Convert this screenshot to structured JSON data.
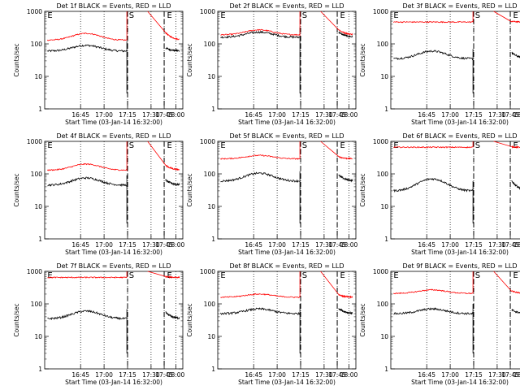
{
  "figure": {
    "background": "#ffffff",
    "axis_color": "#000000",
    "events_color": "#000000",
    "lld_color": "#ff0000"
  },
  "chart_data": [
    {
      "type": "line",
      "title": "Det 1f BLACK = Events, RED = LLD",
      "xlabel": "Start Time (03-Jan-14 16:32:00)",
      "ylabel": "Counts/sec",
      "yscale": "log",
      "ylim": [
        1,
        1000
      ],
      "ytick_labels": [
        "1",
        "10",
        "100",
        "1000"
      ],
      "xtick_labels": [
        "16:45",
        "17:00",
        "17:15",
        "17:30",
        "17:45",
        "18:00"
      ],
      "markers": [
        "E",
        "S",
        "E"
      ],
      "events": {
        "base": 60,
        "hump": 30,
        "after": 80
      },
      "lld": {
        "base": 130,
        "hump": 80,
        "after": 250,
        "off_scale_peak": true
      }
    },
    {
      "type": "line",
      "title": "Det 2f BLACK = Events, RED = LLD",
      "xlabel": "Start Time (03-Jan-14 16:32:00)",
      "ylabel": "Counts/sec",
      "yscale": "log",
      "ylim": [
        1,
        1000
      ],
      "ytick_labels": [
        "1",
        "10",
        "100",
        "1000"
      ],
      "xtick_labels": [
        "16:45",
        "17:00",
        "17:15",
        "17:30",
        "17:45",
        "18:00"
      ],
      "markers": [
        "E",
        "S",
        "E"
      ],
      "events": {
        "base": 160,
        "hump": 70,
        "after": 250
      },
      "lld": {
        "base": 190,
        "hump": 80,
        "after": 300,
        "off_scale_peak": true
      }
    },
    {
      "type": "line",
      "title": "Det 3f BLACK = Events, RED = LLD",
      "xlabel": "Start Time (03-Jan-14 16:32:00)",
      "ylabel": "Counts/sec",
      "yscale": "log",
      "ylim": [
        1,
        1000
      ],
      "ytick_labels": [
        "1",
        "10",
        "100",
        "1000"
      ],
      "xtick_labels": [
        "16:45",
        "17:00",
        "17:15",
        "17:30",
        "17:45",
        "18:00"
      ],
      "markers": [
        "E",
        "S",
        "E"
      ],
      "events": {
        "base": 35,
        "hump": 25,
        "after": 60
      },
      "lld": {
        "base": 470,
        "hump": 0,
        "after": 500,
        "off_scale_peak": true
      }
    },
    {
      "type": "line",
      "title": "Det 4f BLACK = Events, RED = LLD",
      "xlabel": "Start Time (03-Jan-14 16:32:00)",
      "ylabel": "Counts/sec",
      "yscale": "log",
      "ylim": [
        1,
        1000
      ],
      "ytick_labels": [
        "1",
        "10",
        "100",
        "1000"
      ],
      "xtick_labels": [
        "16:45",
        "17:00",
        "17:15",
        "17:30",
        "17:45",
        "18:00"
      ],
      "markers": [
        "E",
        "S",
        "E"
      ],
      "events": {
        "base": 45,
        "hump": 30,
        "after": 70
      },
      "lld": {
        "base": 130,
        "hump": 70,
        "after": 200,
        "off_scale_peak": true
      }
    },
    {
      "type": "line",
      "title": "Det 5f BLACK = Events, RED = LLD",
      "xlabel": "Start Time (03-Jan-14 16:32:00)",
      "ylabel": "Counts/sec",
      "yscale": "log",
      "ylim": [
        1,
        1000
      ],
      "ytick_labels": [
        "1",
        "10",
        "100",
        "1000"
      ],
      "xtick_labels": [
        "16:45",
        "17:00",
        "17:15",
        "17:30",
        "17:45",
        "18:00"
      ],
      "markers": [
        "E",
        "S",
        "E"
      ],
      "events": {
        "base": 60,
        "hump": 45,
        "after": 100
      },
      "lld": {
        "base": 290,
        "hump": 80,
        "after": 350,
        "off_scale_peak": true
      }
    },
    {
      "type": "line",
      "title": "Det 6f BLACK = Events, RED = LLD",
      "xlabel": "Start Time (03-Jan-14 16:32:00)",
      "ylabel": "Counts/sec",
      "yscale": "log",
      "ylim": [
        1,
        1000
      ],
      "ytick_labels": [
        "1",
        "10",
        "100",
        "1000"
      ],
      "xtick_labels": [
        "16:45",
        "17:00",
        "17:15",
        "17:30",
        "17:45",
        "18:00"
      ],
      "markers": [
        "E",
        "S",
        "E"
      ],
      "events": {
        "base": 30,
        "hump": 40,
        "after": 70
      },
      "lld": {
        "base": 660,
        "hump": 0,
        "after": 680,
        "off_scale_peak": true
      }
    },
    {
      "type": "line",
      "title": "Det 7f BLACK = Events, RED = LLD",
      "xlabel": "Start Time (03-Jan-14 16:32:00)",
      "ylabel": "Counts/sec",
      "yscale": "log",
      "ylim": [
        1,
        1000
      ],
      "ytick_labels": [
        "1",
        "10",
        "100",
        "1000"
      ],
      "xtick_labels": [
        "16:45",
        "17:00",
        "17:15",
        "17:30",
        "17:45",
        "18:00"
      ],
      "markers": [
        "E",
        "S",
        "E"
      ],
      "events": {
        "base": 35,
        "hump": 25,
        "after": 60
      },
      "lld": {
        "base": 650,
        "hump": 0,
        "after": 700,
        "off_scale_peak": true
      }
    },
    {
      "type": "line",
      "title": "Det 8f BLACK = Events, RED = LLD",
      "xlabel": "Start Time (03-Jan-14 16:32:00)",
      "ylabel": "Counts/sec",
      "yscale": "log",
      "ylim": [
        1,
        1000
      ],
      "ytick_labels": [
        "1",
        "10",
        "100",
        "1000"
      ],
      "xtick_labels": [
        "16:45",
        "17:00",
        "17:15",
        "17:30",
        "17:45",
        "18:00"
      ],
      "markers": [
        "E",
        "S",
        "E"
      ],
      "events": {
        "base": 50,
        "hump": 20,
        "after": 80
      },
      "lld": {
        "base": 160,
        "hump": 40,
        "after": 200,
        "off_scale_peak": true
      }
    },
    {
      "type": "line",
      "title": "Det 9f BLACK = Events, RED = LLD",
      "xlabel": "Start Time (03-Jan-14 16:32:00)",
      "ylabel": "Counts/sec",
      "yscale": "log",
      "ylim": [
        1,
        1000
      ],
      "ytick_labels": [
        "1",
        "10",
        "100",
        "1000"
      ],
      "xtick_labels": [
        "16:45",
        "17:00",
        "17:15",
        "17:30",
        "17:45",
        "18:00"
      ],
      "markers": [
        "E",
        "S",
        "E"
      ],
      "events": {
        "base": 50,
        "hump": 20,
        "after": 70
      },
      "lld": {
        "base": 210,
        "hump": 60,
        "after": 260,
        "off_scale_peak": true
      }
    }
  ]
}
